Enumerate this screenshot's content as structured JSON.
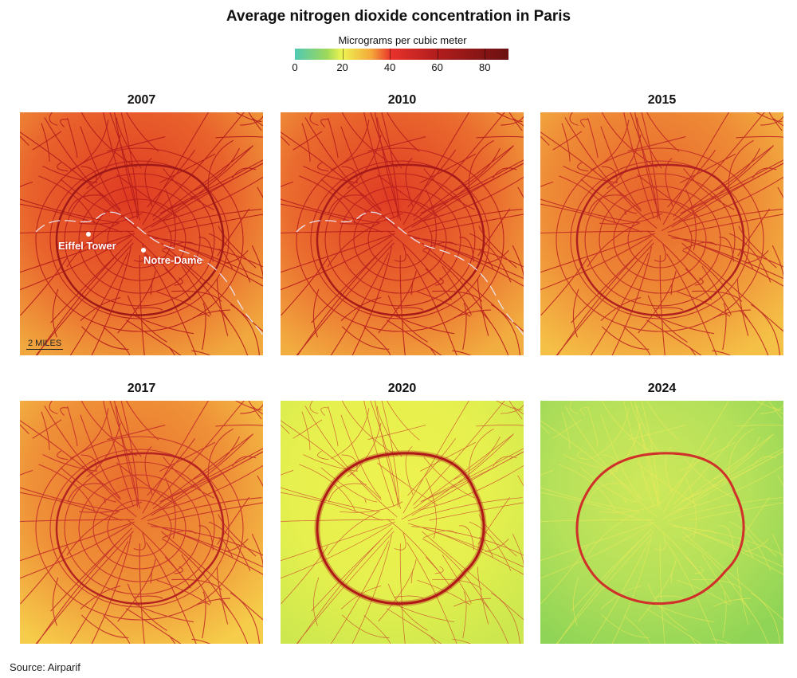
{
  "title": "Average nitrogen dioxide concentration in Paris",
  "legend": {
    "title": "Micrograms per cubic meter",
    "ticks": [
      "0",
      "20",
      "40",
      "60",
      "80"
    ],
    "tick_values": [
      0,
      20,
      40,
      60,
      80
    ],
    "range": [
      0,
      90
    ],
    "colors": [
      "#4fc9b3",
      "#9ed85a",
      "#eef552",
      "#f4a63a",
      "#e8322a",
      "#b51e1e",
      "#6b1010"
    ]
  },
  "panels": [
    {
      "year": "2007",
      "bg": "#e9622c",
      "hot": "#df3a22",
      "edge": "#f1a83e",
      "road": "#b41c1c",
      "ring": "#a01818",
      "river": true
    },
    {
      "year": "2010",
      "bg": "#ea6a2e",
      "hot": "#e03c24",
      "edge": "#f2ad40",
      "road": "#b81e1e",
      "ring": "#a81a1a",
      "river": true
    },
    {
      "year": "2015",
      "bg": "#ee8a36",
      "hot": "#e8642c",
      "edge": "#f5c046",
      "road": "#bf2a24",
      "ring": "#b02020",
      "river": false
    },
    {
      "year": "2017",
      "bg": "#ef9238",
      "hot": "#ea6e2e",
      "edge": "#f6cd4a",
      "road": "#c4302a",
      "ring": "#b42222",
      "river": false
    },
    {
      "year": "2020",
      "bg": "#e6f04e",
      "hot": "#eef250",
      "edge": "#cde84e",
      "road": "#c8362a",
      "ring": "#b01818",
      "river": false
    },
    {
      "year": "2024",
      "bg": "#b4e05a",
      "hot": "#cfe85a",
      "edge": "#8fd456",
      "road": "#f0ea5a",
      "ring": "#d0302a",
      "river": false
    }
  ],
  "annotations": {
    "eiffel": "Eiffel Tower",
    "notre_dame": "Notre-Dame",
    "scale": "2 MILES"
  },
  "source": "Source: Airparif"
}
